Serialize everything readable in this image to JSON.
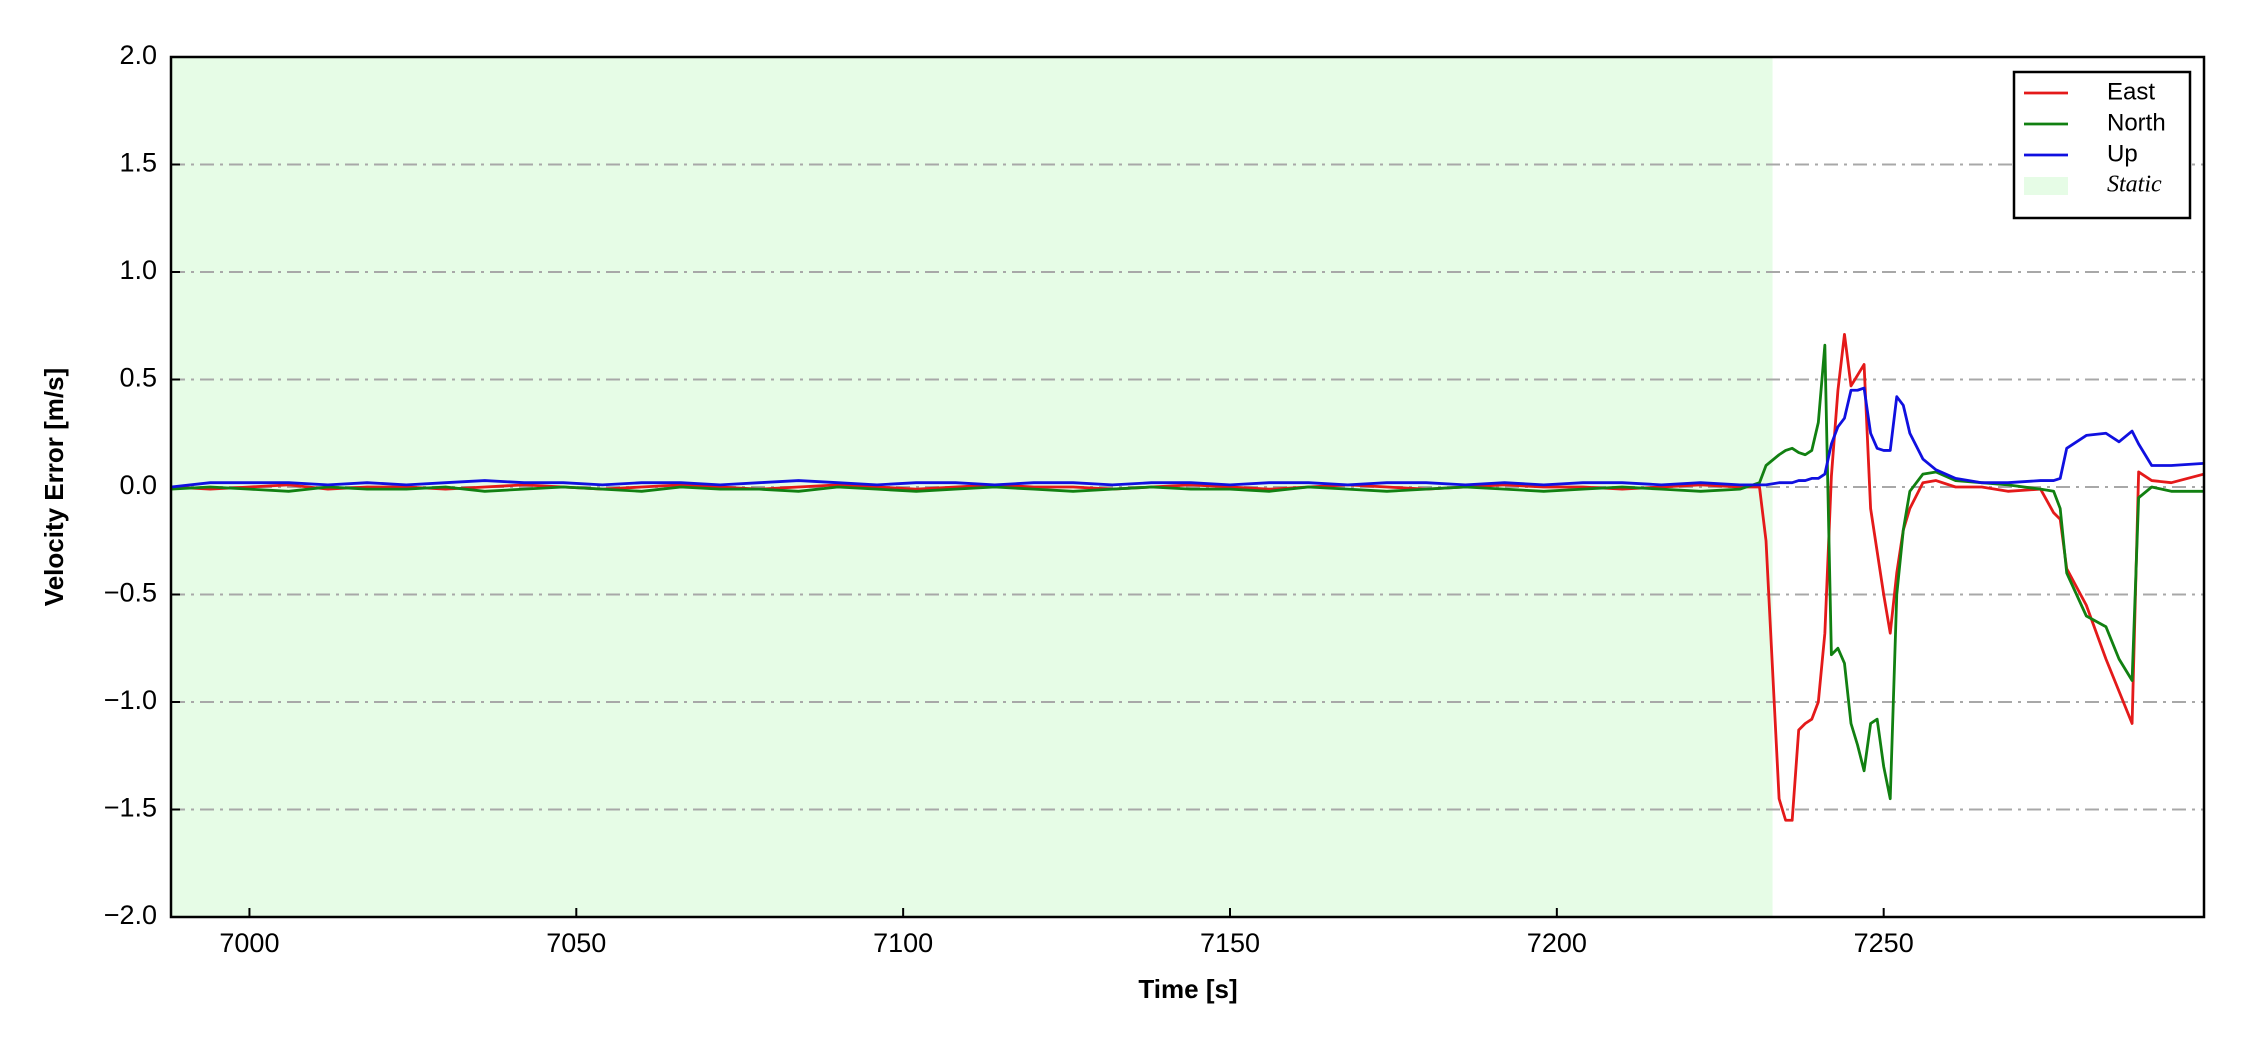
{
  "chart_data": {
    "type": "line",
    "xlabel": "Time [s]",
    "ylabel": "Velocity Error [m/s]",
    "xlim": [
      6988,
      7299
    ],
    "ylim": [
      -2,
      2
    ],
    "xticks": [
      7000,
      7050,
      7100,
      7150,
      7200,
      7250
    ],
    "yticks": [
      {
        "value": -2,
        "label": "−2.0"
      },
      {
        "value": -1.5,
        "label": "−1.5"
      },
      {
        "value": -1,
        "label": "−1.0"
      },
      {
        "value": -0.5,
        "label": "−0.5"
      },
      {
        "value": 0,
        "label": "0.0"
      },
      0.5,
      {
        "value": 1,
        "label": "1.0"
      },
      1.5,
      {
        "value": 2,
        "label": "2.0"
      }
    ],
    "grid": true,
    "legend": "upper right",
    "shaded_regions": [
      {
        "name": "Static",
        "color": "#e6fce6",
        "x": [
          6988,
          7233
        ]
      }
    ],
    "x": [
      6988,
      6994,
      7000,
      7006,
      7012,
      7018,
      7024,
      7030,
      7036,
      7042,
      7048,
      7054,
      7060,
      7066,
      7072,
      7078,
      7084,
      7090,
      7096,
      7102,
      7108,
      7114,
      7120,
      7126,
      7132,
      7138,
      7144,
      7150,
      7156,
      7162,
      7168,
      7174,
      7180,
      7186,
      7192,
      7198,
      7204,
      7210,
      7216,
      7222,
      7228,
      7231,
      7232,
      7234,
      7235,
      7236,
      7237,
      7238,
      7239,
      7240,
      7241,
      7242,
      7243,
      7244,
      7245,
      7246,
      7247,
      7248,
      7249,
      7250,
      7251,
      7252,
      7253,
      7254,
      7256,
      7258,
      7261,
      7265,
      7269,
      7274,
      7276,
      7277,
      7278,
      7281,
      7284,
      7286,
      7288,
      7289,
      7291,
      7294,
      7299
    ],
    "series": [
      {
        "name": "East",
        "color": "#e41a1a",
        "values": [
          0,
          -0.01,
          0,
          0.01,
          -0.01,
          0,
          0,
          -0.01,
          0,
          0.01,
          0,
          -0.01,
          0,
          0.01,
          0,
          -0.01,
          0,
          0.01,
          0,
          -0.01,
          0,
          0.01,
          0,
          0,
          -0.01,
          0,
          0.01,
          0,
          -0.01,
          0,
          0.01,
          0,
          -0.01,
          0,
          0.01,
          0,
          0,
          -0.01,
          0,
          0.01,
          0,
          0,
          -0.25,
          -1.45,
          -1.55,
          -1.55,
          -1.13,
          -1.1,
          -1.08,
          -1.0,
          -0.68,
          0.05,
          0.45,
          0.71,
          0.47,
          0.52,
          0.57,
          -0.1,
          -0.3,
          -0.5,
          -0.68,
          -0.4,
          -0.2,
          -0.1,
          0.02,
          0.03,
          0.0,
          0.0,
          -0.02,
          -0.01,
          -0.12,
          -0.15,
          -0.38,
          -0.55,
          -0.8,
          -0.95,
          -1.1,
          0.07,
          0.03,
          0.02,
          0.06
        ]
      },
      {
        "name": "North",
        "color": "#118011",
        "values": [
          -0.01,
          0,
          -0.01,
          -0.02,
          0,
          -0.01,
          -0.01,
          0,
          -0.02,
          -0.01,
          0,
          -0.01,
          -0.02,
          0,
          -0.01,
          -0.01,
          -0.02,
          0,
          -0.01,
          -0.02,
          -0.01,
          0,
          -0.01,
          -0.02,
          -0.01,
          0,
          -0.01,
          -0.01,
          -0.02,
          0,
          -0.01,
          -0.02,
          -0.01,
          0,
          -0.01,
          -0.02,
          -0.01,
          0,
          -0.01,
          -0.02,
          -0.01,
          0.02,
          0.1,
          0.15,
          0.17,
          0.18,
          0.16,
          0.15,
          0.17,
          0.3,
          0.66,
          -0.78,
          -0.75,
          -0.82,
          -1.1,
          -1.2,
          -1.32,
          -1.1,
          -1.08,
          -1.3,
          -1.45,
          -0.5,
          -0.2,
          -0.02,
          0.06,
          0.07,
          0.03,
          0.02,
          0.01,
          -0.01,
          -0.02,
          -0.1,
          -0.4,
          -0.6,
          -0.65,
          -0.8,
          -0.9,
          -0.05,
          0.0,
          -0.02,
          -0.02
        ]
      },
      {
        "name": "Up",
        "color": "#1010e0",
        "values": [
          0,
          0.02,
          0.02,
          0.02,
          0.01,
          0.02,
          0.01,
          0.02,
          0.03,
          0.02,
          0.02,
          0.01,
          0.02,
          0.02,
          0.01,
          0.02,
          0.03,
          0.02,
          0.01,
          0.02,
          0.02,
          0.01,
          0.02,
          0.02,
          0.01,
          0.02,
          0.02,
          0.01,
          0.02,
          0.02,
          0.01,
          0.02,
          0.02,
          0.01,
          0.02,
          0.01,
          0.02,
          0.02,
          0.01,
          0.02,
          0.01,
          0.01,
          0.01,
          0.02,
          0.02,
          0.02,
          0.03,
          0.03,
          0.04,
          0.04,
          0.06,
          0.2,
          0.28,
          0.32,
          0.45,
          0.45,
          0.46,
          0.25,
          0.18,
          0.17,
          0.17,
          0.42,
          0.38,
          0.25,
          0.13,
          0.08,
          0.04,
          0.02,
          0.02,
          0.03,
          0.03,
          0.04,
          0.18,
          0.24,
          0.25,
          0.21,
          0.26,
          0.2,
          0.1,
          0.1,
          0.11
        ]
      }
    ]
  }
}
